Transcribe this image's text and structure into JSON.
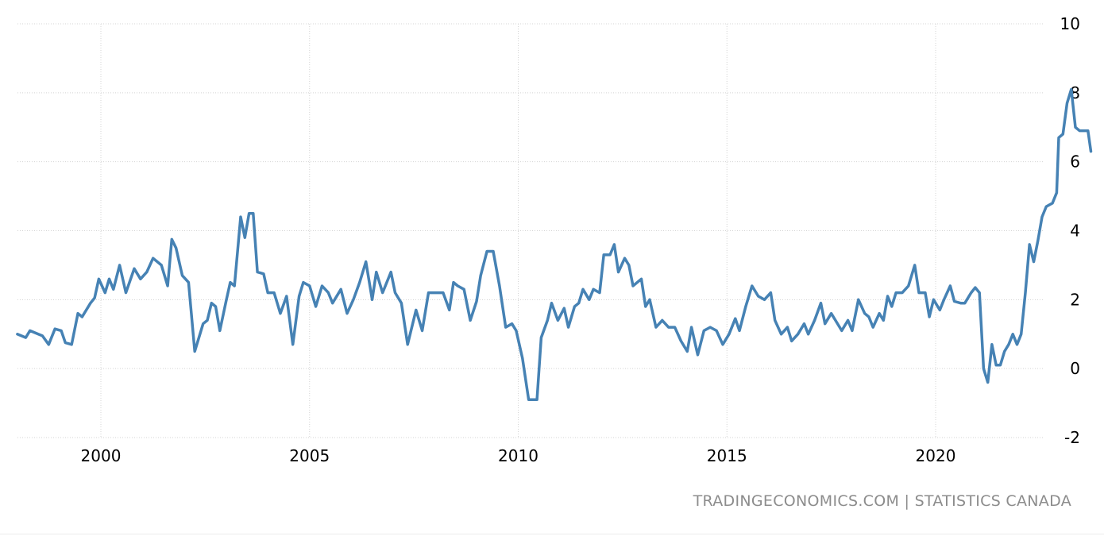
{
  "chart_data": {
    "type": "line",
    "title": "",
    "xlabel": "",
    "ylabel": "",
    "xlim": [
      1998.0,
      2022.83
    ],
    "ylim": [
      -2,
      10
    ],
    "yticks": [
      -2,
      0,
      2,
      4,
      6,
      8,
      10
    ],
    "xticks": [
      2000,
      2005,
      2010,
      2015,
      2020
    ],
    "grid": true,
    "y_axis_position": "right",
    "line_color": "#4682b4",
    "series": [
      {
        "points": [
          [
            1998.0,
            1.0
          ],
          [
            1998.2,
            0.9
          ],
          [
            1998.3,
            1.1
          ],
          [
            1998.5,
            1.0
          ],
          [
            1998.6,
            0.95
          ],
          [
            1998.75,
            0.7
          ],
          [
            1998.9,
            1.15
          ],
          [
            1999.05,
            1.1
          ],
          [
            1999.15,
            0.75
          ],
          [
            1999.3,
            0.7
          ],
          [
            1999.45,
            1.6
          ],
          [
            1999.55,
            1.5
          ],
          [
            1999.75,
            1.9
          ],
          [
            1999.85,
            2.05
          ],
          [
            1999.95,
            2.6
          ],
          [
            2000.1,
            2.2
          ],
          [
            2000.2,
            2.6
          ],
          [
            2000.3,
            2.3
          ],
          [
            2000.45,
            3.0
          ],
          [
            2000.6,
            2.2
          ],
          [
            2000.8,
            2.9
          ],
          [
            2000.95,
            2.6
          ],
          [
            2001.1,
            2.8
          ],
          [
            2001.25,
            3.2
          ],
          [
            2001.45,
            3.0
          ],
          [
            2001.6,
            2.4
          ],
          [
            2001.7,
            3.75
          ],
          [
            2001.8,
            3.5
          ],
          [
            2001.95,
            2.7
          ],
          [
            2002.1,
            2.5
          ],
          [
            2002.25,
            0.5
          ],
          [
            2002.45,
            1.3
          ],
          [
            2002.55,
            1.4
          ],
          [
            2002.65,
            1.9
          ],
          [
            2002.75,
            1.8
          ],
          [
            2002.85,
            1.1
          ],
          [
            2003.0,
            1.95
          ],
          [
            2003.1,
            2.5
          ],
          [
            2003.2,
            2.4
          ],
          [
            2003.35,
            4.4
          ],
          [
            2003.45,
            3.8
          ],
          [
            2003.55,
            4.5
          ],
          [
            2003.65,
            4.5
          ],
          [
            2003.75,
            2.8
          ],
          [
            2003.9,
            2.75
          ],
          [
            2004.0,
            2.2
          ],
          [
            2004.15,
            2.2
          ],
          [
            2004.3,
            1.6
          ],
          [
            2004.45,
            2.1
          ],
          [
            2004.6,
            0.7
          ],
          [
            2004.75,
            2.1
          ],
          [
            2004.85,
            2.5
          ],
          [
            2005.0,
            2.4
          ],
          [
            2005.15,
            1.8
          ],
          [
            2005.3,
            2.4
          ],
          [
            2005.45,
            2.2
          ],
          [
            2005.55,
            1.9
          ],
          [
            2005.75,
            2.3
          ],
          [
            2005.9,
            1.6
          ],
          [
            2006.05,
            2.0
          ],
          [
            2006.2,
            2.5
          ],
          [
            2006.35,
            3.1
          ],
          [
            2006.5,
            2.0
          ],
          [
            2006.6,
            2.8
          ],
          [
            2006.75,
            2.2
          ],
          [
            2006.95,
            2.8
          ],
          [
            2007.05,
            2.2
          ],
          [
            2007.2,
            1.9
          ],
          [
            2007.35,
            0.7
          ],
          [
            2007.55,
            1.7
          ],
          [
            2007.7,
            1.1
          ],
          [
            2007.85,
            2.2
          ],
          [
            2008.05,
            2.2
          ],
          [
            2008.2,
            2.2
          ],
          [
            2008.35,
            1.7
          ],
          [
            2008.45,
            2.5
          ],
          [
            2008.55,
            2.4
          ],
          [
            2008.7,
            2.3
          ],
          [
            2008.85,
            1.4
          ],
          [
            2009.0,
            1.95
          ],
          [
            2009.1,
            2.7
          ],
          [
            2009.25,
            3.4
          ],
          [
            2009.4,
            3.4
          ],
          [
            2009.55,
            2.4
          ],
          [
            2009.7,
            1.2
          ],
          [
            2009.85,
            1.3
          ],
          [
            2009.95,
            1.1
          ],
          [
            2010.1,
            0.3
          ],
          [
            2010.25,
            -0.9
          ],
          [
            2010.35,
            -0.9
          ],
          [
            2010.45,
            -0.9
          ],
          [
            2010.55,
            0.9
          ],
          [
            2010.7,
            1.4
          ],
          [
            2010.8,
            1.9
          ],
          [
            2010.95,
            1.4
          ],
          [
            2011.1,
            1.75
          ],
          [
            2011.2,
            1.2
          ],
          [
            2011.35,
            1.8
          ],
          [
            2011.45,
            1.9
          ],
          [
            2011.55,
            2.3
          ],
          [
            2011.7,
            2.0
          ],
          [
            2011.8,
            2.3
          ],
          [
            2011.95,
            2.2
          ],
          [
            2012.05,
            3.3
          ],
          [
            2012.2,
            3.3
          ],
          [
            2012.3,
            3.6
          ],
          [
            2012.4,
            2.8
          ],
          [
            2012.55,
            3.2
          ],
          [
            2012.65,
            3.0
          ],
          [
            2012.75,
            2.4
          ],
          [
            2012.95,
            2.6
          ],
          [
            2013.05,
            1.8
          ],
          [
            2013.15,
            2.0
          ],
          [
            2013.3,
            1.2
          ],
          [
            2013.45,
            1.4
          ],
          [
            2013.6,
            1.2
          ],
          [
            2013.75,
            1.2
          ],
          [
            2013.9,
            0.8
          ],
          [
            2014.05,
            0.5
          ],
          [
            2014.15,
            1.2
          ],
          [
            2014.3,
            0.4
          ],
          [
            2014.45,
            1.1
          ],
          [
            2014.6,
            1.2
          ],
          [
            2014.75,
            1.1
          ],
          [
            2014.9,
            0.7
          ],
          [
            2015.05,
            1.0
          ],
          [
            2015.2,
            1.45
          ],
          [
            2015.3,
            1.1
          ],
          [
            2015.45,
            1.8
          ],
          [
            2015.6,
            2.4
          ],
          [
            2015.75,
            2.1
          ],
          [
            2015.9,
            2.0
          ],
          [
            2016.05,
            2.2
          ],
          [
            2016.15,
            1.4
          ],
          [
            2016.3,
            1.0
          ],
          [
            2016.45,
            1.2
          ],
          [
            2016.55,
            0.8
          ],
          [
            2016.7,
            1.0
          ],
          [
            2016.85,
            1.3
          ],
          [
            2016.95,
            1.0
          ],
          [
            2017.1,
            1.4
          ],
          [
            2017.25,
            1.9
          ],
          [
            2017.35,
            1.3
          ],
          [
            2017.5,
            1.6
          ],
          [
            2017.6,
            1.4
          ],
          [
            2017.75,
            1.1
          ],
          [
            2017.9,
            1.4
          ],
          [
            2018.0,
            1.1
          ],
          [
            2018.15,
            2.0
          ],
          [
            2018.3,
            1.6
          ],
          [
            2018.4,
            1.5
          ],
          [
            2018.5,
            1.2
          ],
          [
            2018.65,
            1.6
          ],
          [
            2018.75,
            1.4
          ],
          [
            2018.85,
            2.1
          ],
          [
            2018.95,
            1.8
          ],
          [
            2019.05,
            2.2
          ],
          [
            2019.2,
            2.2
          ],
          [
            2019.35,
            2.4
          ],
          [
            2019.5,
            3.0
          ],
          [
            2019.6,
            2.2
          ],
          [
            2019.75,
            2.2
          ],
          [
            2019.85,
            1.5
          ],
          [
            2019.95,
            2.0
          ],
          [
            2020.1,
            1.7
          ],
          [
            2020.2,
            2.0
          ],
          [
            2020.35,
            2.4
          ],
          [
            2020.45,
            1.95
          ],
          [
            2020.6,
            1.9
          ],
          [
            2020.7,
            1.9
          ],
          [
            2020.85,
            2.2
          ],
          [
            2020.95,
            2.35
          ],
          [
            2021.05,
            2.2
          ],
          [
            2021.15,
            0.0
          ],
          [
            2021.25,
            -0.4
          ],
          [
            2021.35,
            0.7
          ],
          [
            2021.45,
            0.1
          ],
          [
            2021.55,
            0.1
          ],
          [
            2021.65,
            0.5
          ],
          [
            2021.75,
            0.7
          ],
          [
            2021.85,
            1.0
          ],
          [
            2021.95,
            0.7
          ],
          [
            2022.05,
            1.0
          ],
          [
            2022.15,
            2.2
          ],
          [
            2022.25,
            3.6
          ],
          [
            2022.35,
            3.1
          ],
          [
            2022.45,
            3.7
          ],
          [
            2022.55,
            4.4
          ],
          [
            2022.65,
            4.7
          ],
          [
            2022.8,
            4.8
          ],
          [
            2022.9,
            5.1
          ],
          [
            2022.95,
            6.7
          ],
          [
            2023.05,
            6.8
          ],
          [
            2023.15,
            7.7
          ],
          [
            2023.25,
            8.1
          ],
          [
            2023.35,
            7.0
          ],
          [
            2023.45,
            6.9
          ],
          [
            2023.55,
            6.9
          ],
          [
            2023.65,
            6.9
          ],
          [
            2023.72,
            6.3
          ]
        ]
      }
    ]
  },
  "source": "TRADINGECONOMICS.COM | STATISTICS CANADA"
}
